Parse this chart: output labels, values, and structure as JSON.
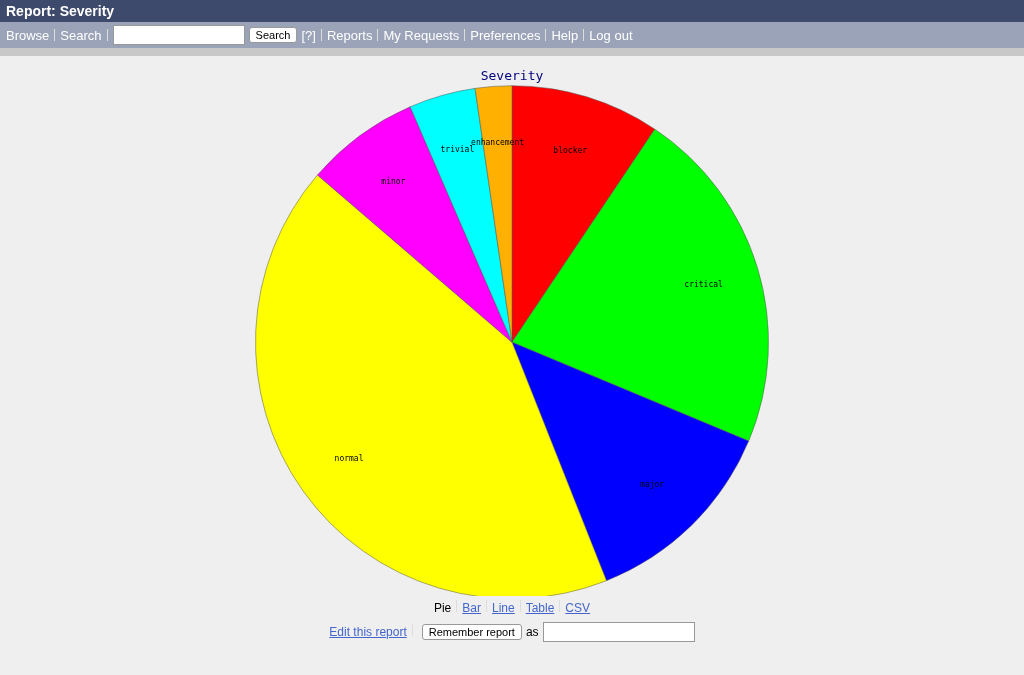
{
  "chart_data": {
    "type": "pie",
    "title": "Severity",
    "categories": [
      "blocker",
      "critical",
      "major",
      "normal",
      "minor",
      "trivial",
      "enhancement"
    ],
    "values": [
      9.4,
      21.9,
      12.7,
      42.3,
      7.2,
      4.2,
      2.3
    ],
    "colors": [
      "#ff0000",
      "#00ff00",
      "#0000ff",
      "#ffff00",
      "#ff00ff",
      "#00ffff",
      "#ffb000"
    ],
    "legend": false,
    "annotations": [
      "Report: Severity",
      "Browse",
      "Search",
      "Search",
      "[?]",
      "Reports",
      "My Requests",
      "Preferences",
      "Help",
      "Log out",
      "Pie",
      "Bar",
      "Line",
      "Table",
      "CSV",
      "Edit this report",
      "Remember report",
      "as"
    ]
  }
}
